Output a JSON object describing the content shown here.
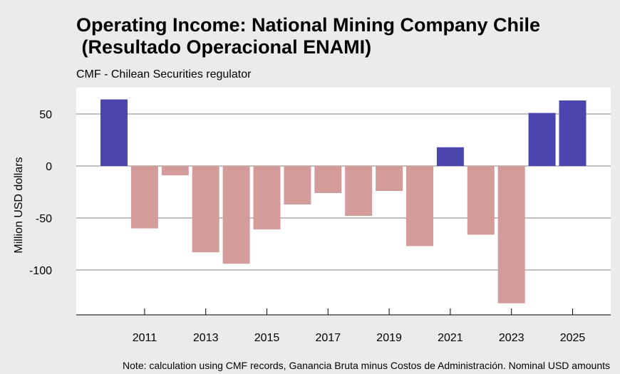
{
  "header": {
    "title": "Operating Income: National Mining Company Chile\n (Resultado Operacional ENAMI)",
    "subtitle": "CMF - Chilean Securities regulator"
  },
  "footer": {
    "note": "Note: calculation using CMF records, Ganancia Bruta minus Costos de Administración. Nominal USD amounts"
  },
  "chart_data": {
    "type": "bar",
    "title": "Operating Income: National Mining Company Chile (Resultado Operacional ENAMI)",
    "subtitle": "CMF - Chilean Securities regulator",
    "xlabel": "",
    "ylabel": "Million USD dollars",
    "x": [
      2010,
      2011,
      2012,
      2013,
      2014,
      2015,
      2016,
      2017,
      2018,
      2019,
      2020,
      2021,
      2022,
      2023,
      2024,
      2025
    ],
    "values": [
      64,
      -60,
      -9,
      -83,
      -94,
      -61,
      -37,
      -26,
      -48,
      -24,
      -77,
      18,
      -66,
      -132,
      51,
      63
    ],
    "x_tick_labels": [
      "2011",
      "2013",
      "2015",
      "2017",
      "2019",
      "2021",
      "2023",
      "2025"
    ],
    "y_ticks": [
      50,
      0,
      -50,
      -100
    ],
    "ylim": [
      -140,
      75
    ],
    "grid": true,
    "colors": {
      "positive": "#4b46ae",
      "negative": "#d49b9b",
      "plot_background": "#ffffff",
      "grid": "#bfbfbf"
    }
  }
}
